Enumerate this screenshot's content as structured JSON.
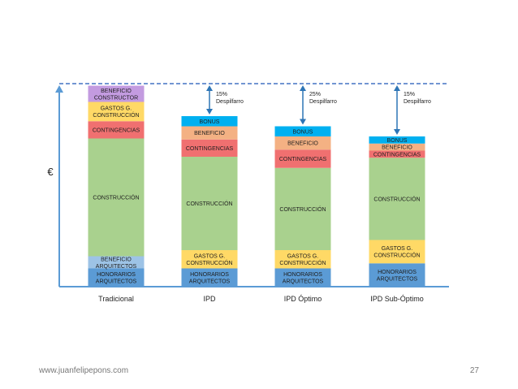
{
  "chart_data": {
    "type": "bar",
    "stacked": true,
    "ylabel": "€",
    "categories": [
      "Tradicional",
      "IPD",
      "IPD Óptimo",
      "IPD Sub-Óptimo"
    ],
    "ylim": [
      0,
      100
    ],
    "reference_line": 100,
    "bars": [
      {
        "category": "Tradicional",
        "segments": [
          {
            "label": "HONORARIOS ARQUITECTOS",
            "value": 9,
            "color": "#5b9bd5"
          },
          {
            "label": "BENEFICIO ARQUITECTOS",
            "value": 6,
            "color": "#9dc3e6"
          },
          {
            "label": "CONSTRUCCIÓN",
            "value": 58,
            "color": "#a9d18e"
          },
          {
            "label": "CONTINGENCIAS",
            "value": 8.5,
            "color": "#f07070"
          },
          {
            "label": "GASTOS G. CONSTRUCCIÓN",
            "value": 9.5,
            "color": "#ffd966"
          },
          {
            "label": "BENEFICIO CONSTRUCTOR",
            "value": 8,
            "color": "#c39be0"
          }
        ]
      },
      {
        "category": "IPD",
        "segments": [
          {
            "label": "HONORARIOS ARQUITECTOS",
            "value": 9,
            "color": "#5b9bd5"
          },
          {
            "label": "GASTOS G. CONSTRUCCIÓN",
            "value": 9,
            "color": "#ffd966"
          },
          {
            "label": "CONSTRUCCIÓN",
            "value": 46,
            "color": "#a9d18e"
          },
          {
            "label": "CONTINGENCIAS",
            "value": 8.5,
            "color": "#f07070"
          },
          {
            "label": "BENEFICIO",
            "value": 6.5,
            "color": "#f4b183"
          },
          {
            "label": "BONUS",
            "value": 5,
            "color": "#00b0f0"
          }
        ]
      },
      {
        "category": "IPD Óptimo",
        "segments": [
          {
            "label": "HONORARIOS ARQUITECTOS",
            "value": 9,
            "color": "#5b9bd5"
          },
          {
            "label": "GASTOS G. CONSTRUCCIÓN",
            "value": 9,
            "color": "#ffd966"
          },
          {
            "label": "CONSTRUCCIÓN",
            "value": 40.5,
            "color": "#a9d18e"
          },
          {
            "label": "CONTINGENCIAS",
            "value": 9,
            "color": "#f07070"
          },
          {
            "label": "BENEFICIO",
            "value": 6.5,
            "color": "#f4b183"
          },
          {
            "label": "BONUS",
            "value": 5,
            "color": "#00b0f0"
          }
        ]
      },
      {
        "category": "IPD Sub-Óptimo",
        "segments": [
          {
            "label": "HONORARIOS ARQUITECTOS",
            "value": 11.5,
            "color": "#5b9bd5"
          },
          {
            "label": "GASTOS G. CONSTRUCCIÓN",
            "value": 11.5,
            "color": "#ffd966"
          },
          {
            "label": "CONSTRUCCIÓN",
            "value": 40.5,
            "color": "#a9d18e"
          },
          {
            "label": "CONTINGENCIAS",
            "value": 3.5,
            "color": "#f07070"
          },
          {
            "label": "BENEFICIO",
            "value": 3.5,
            "color": "#f4b183"
          },
          {
            "label": "BONUS",
            "value": 3.5,
            "color": "#00b0f0"
          }
        ]
      }
    ],
    "annotations": [
      {
        "category": "IPD",
        "text": [
          "15%",
          "Despilfarro"
        ]
      },
      {
        "category": "IPD Óptimo",
        "text": [
          "25%",
          "Despilfarro"
        ]
      },
      {
        "category": "IPD Sub-Óptimo",
        "text": [
          "15%",
          "Despilfarro"
        ]
      }
    ]
  },
  "footer": {
    "url": "www.juanfelipepons.com",
    "page": "27"
  },
  "colors": {
    "axis": "#5b9bd5",
    "reference_line": "#4472c4",
    "arrow": "#2e75b6"
  }
}
